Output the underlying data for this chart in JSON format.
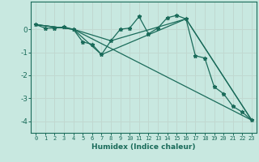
{
  "xlabel": "Humidex (Indice chaleur)",
  "background_color": "#c8e8e0",
  "grid_color": "#c0d8d0",
  "line_color": "#1a6b5a",
  "xlim": [
    -0.5,
    23.5
  ],
  "ylim": [
    -4.5,
    1.2
  ],
  "yticks": [
    0,
    -1,
    -2,
    -3,
    -4
  ],
  "xticks": [
    0,
    1,
    2,
    3,
    4,
    5,
    6,
    7,
    8,
    9,
    10,
    11,
    12,
    13,
    14,
    15,
    16,
    17,
    18,
    19,
    20,
    21,
    22,
    23
  ],
  "series1_x": [
    0,
    1,
    2,
    3,
    4,
    5,
    6,
    7,
    8,
    9,
    10,
    11,
    12,
    13,
    14,
    15,
    16,
    17,
    18,
    19,
    20,
    21,
    22,
    23
  ],
  "series1_y": [
    0.2,
    0.05,
    0.05,
    0.1,
    0.0,
    -0.55,
    -0.65,
    -1.1,
    -0.5,
    0.0,
    0.05,
    0.55,
    -0.2,
    0.05,
    0.5,
    0.6,
    0.45,
    -1.15,
    -1.25,
    -2.5,
    -2.8,
    -3.35,
    -3.6,
    -3.95
  ],
  "series2_x": [
    0,
    4,
    23
  ],
  "series2_y": [
    0.2,
    0.0,
    -3.95
  ],
  "series3_x": [
    0,
    4,
    8,
    16,
    23
  ],
  "series3_y": [
    0.2,
    0.0,
    -0.5,
    0.45,
    -3.95
  ],
  "series4_x": [
    0,
    4,
    7,
    16,
    23
  ],
  "series4_y": [
    0.2,
    0.0,
    -1.1,
    0.45,
    -3.95
  ]
}
